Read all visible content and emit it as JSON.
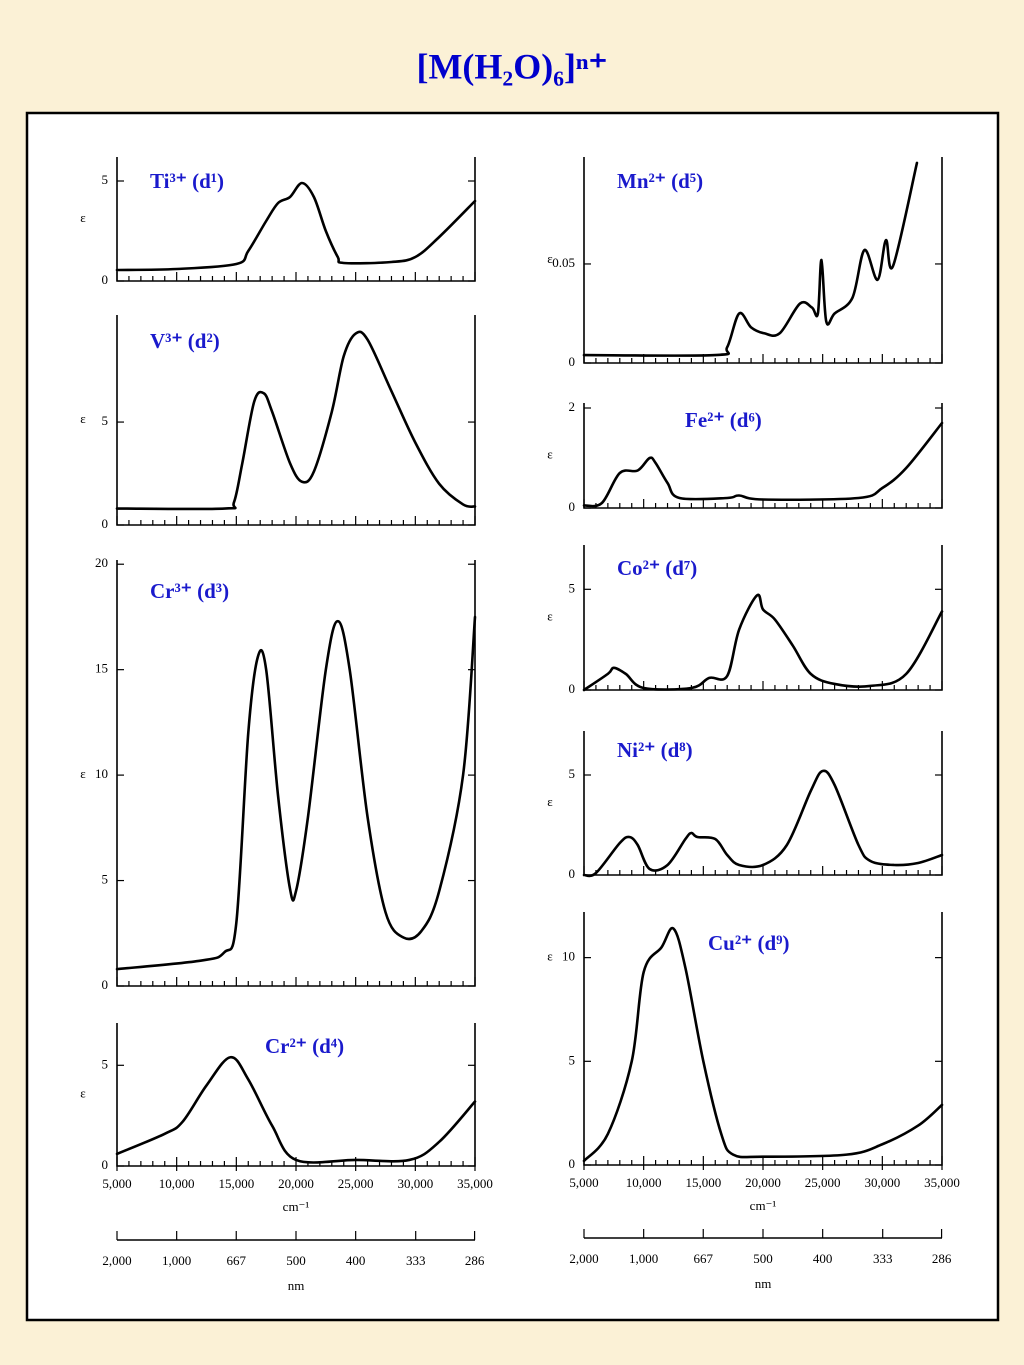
{
  "title": "[M(H₂O)₆]ⁿ⁺",
  "chart_data": [
    {
      "type": "line",
      "title": "Ti³⁺ (d¹)",
      "ylabel": "ε",
      "xlim": [
        5000,
        35000
      ],
      "ylim": [
        0,
        6.2
      ],
      "yticks": [
        0,
        5
      ],
      "color": "#000000",
      "x": [
        5000,
        10000,
        15000,
        16000,
        17500,
        18500,
        19500,
        20500,
        21500,
        22500,
        23500,
        24000,
        28000,
        30000,
        32000,
        35000
      ],
      "values": [
        0.55,
        0.6,
        0.85,
        1.5,
        3.0,
        3.9,
        4.2,
        4.9,
        4.2,
        2.5,
        1.2,
        0.9,
        0.95,
        1.2,
        2.2,
        4.0
      ]
    },
    {
      "type": "line",
      "title": "V³⁺ (d²)",
      "ylabel": "ε",
      "xlim": [
        5000,
        35000
      ],
      "ylim": [
        0,
        10.2
      ],
      "yticks": [
        0,
        5
      ],
      "color": "#000000",
      "x": [
        5000,
        14000,
        14800,
        15500,
        16500,
        17300,
        18000,
        19500,
        20500,
        21500,
        23000,
        24000,
        25000,
        26000,
        28000,
        30000,
        32000,
        34000,
        35000
      ],
      "values": [
        0.8,
        0.8,
        1.1,
        3,
        6.0,
        6.4,
        5.5,
        3.0,
        2.1,
        2.6,
        5.5,
        8.2,
        9.3,
        9.0,
        6.5,
        4.0,
        2.0,
        1.0,
        0.9
      ]
    },
    {
      "type": "line",
      "title": "Cr³⁺ (d³)",
      "ylabel": "ε",
      "xlim": [
        5000,
        35000
      ],
      "ylim": [
        0,
        20.2
      ],
      "yticks": [
        0,
        5,
        10,
        15,
        20
      ],
      "color": "#000000",
      "x": [
        5000,
        12000,
        14000,
        15000,
        16000,
        16800,
        17500,
        18500,
        19500,
        20000,
        21000,
        22500,
        23500,
        24500,
        26000,
        27500,
        29000,
        30500,
        32000,
        34000,
        35000
      ],
      "values": [
        0.8,
        1.2,
        1.6,
        3,
        12,
        15.6,
        15,
        9,
        4.6,
        4.5,
        8,
        15,
        17.3,
        15,
        8,
        3.5,
        2.3,
        2.6,
        4.5,
        10,
        17.5
      ]
    },
    {
      "type": "line",
      "title": "Cr²⁺ (d⁴)",
      "ylabel": "ε",
      "xlabel": "cm⁻¹",
      "xlim": [
        5000,
        35000
      ],
      "ylim": [
        0,
        7.1
      ],
      "yticks": [
        0,
        5
      ],
      "color": "#000000",
      "xticks": [
        {
          "value": 5000,
          "label": "5,000"
        },
        {
          "value": 10000,
          "label": "10,000"
        },
        {
          "value": 15000,
          "label": "15,000"
        },
        {
          "value": 20000,
          "label": "20,000"
        },
        {
          "value": 25000,
          "label": "25,000"
        },
        {
          "value": 30000,
          "label": "30,000"
        },
        {
          "value": 35000,
          "label": "35,000"
        }
      ],
      "nm_label": "nm",
      "nm_ticks": [
        {
          "value": 2000,
          "label": "2,000"
        },
        {
          "value": 1000,
          "label": "1,000"
        },
        667,
        500,
        400,
        333,
        286
      ],
      "x": [
        5000,
        9000,
        10500,
        12500,
        14500,
        16000,
        18000,
        20000,
        25000,
        29500,
        32000,
        35000
      ],
      "values": [
        0.6,
        1.6,
        2.2,
        4.0,
        5.4,
        4.3,
        2.0,
        0.3,
        0.3,
        0.3,
        1.2,
        3.2
      ]
    },
    {
      "type": "line",
      "title": "Mn²⁺ (d⁵)",
      "ylabel": "ε",
      "xlim": [
        5000,
        35000
      ],
      "ylim": [
        0,
        0.104
      ],
      "yticks": [
        0,
        0.05
      ],
      "color": "#000000",
      "x": [
        5000,
        16000,
        17000,
        18000,
        19000,
        20100,
        21400,
        23100,
        24100,
        24600,
        24900,
        25300,
        26000,
        27500,
        28500,
        29600,
        30300,
        30900,
        32900
      ],
      "values": [
        0.004,
        0.004,
        0.008,
        0.025,
        0.018,
        0.015,
        0.015,
        0.03,
        0.028,
        0.025,
        0.052,
        0.021,
        0.025,
        0.033,
        0.057,
        0.042,
        0.062,
        0.049,
        0.101
      ]
    },
    {
      "type": "line",
      "title": "Fe²⁺ (d⁶)",
      "ylabel": "ε",
      "xlim": [
        5000,
        35000
      ],
      "ylim": [
        0,
        2.1
      ],
      "yticks": [
        0,
        2
      ],
      "color": "#000000",
      "x": [
        5000,
        6500,
        8000,
        9500,
        10500,
        11000,
        12000,
        13000,
        17000,
        18000,
        20000,
        28000,
        30000,
        32000,
        35000
      ],
      "values": [
        0.05,
        0.1,
        0.7,
        0.75,
        1.0,
        0.9,
        0.5,
        0.2,
        0.2,
        0.25,
        0.17,
        0.2,
        0.4,
        0.8,
        1.7
      ]
    },
    {
      "type": "line",
      "title": "Co²⁺ (d⁷)",
      "ylabel": "ε",
      "xlim": [
        5000,
        35000
      ],
      "ylim": [
        0,
        7.2
      ],
      "yticks": [
        0,
        5
      ],
      "color": "#000000",
      "x": [
        5000,
        7000,
        7500,
        8500,
        10000,
        14000,
        15500,
        17000,
        18000,
        19500,
        20000,
        21000,
        22500,
        24000,
        26000,
        29000,
        32000,
        35000
      ],
      "values": [
        0,
        0.8,
        1.1,
        0.8,
        0.1,
        0.1,
        0.6,
        0.7,
        3,
        4.7,
        4.0,
        3.5,
        2.2,
        0.8,
        0.3,
        0.2,
        0.8,
        3.9
      ]
    },
    {
      "type": "line",
      "title": "Ni²⁺ (d⁸)",
      "ylabel": "ε",
      "xlim": [
        5000,
        35000
      ],
      "ylim": [
        0,
        7.2
      ],
      "yticks": [
        0,
        5
      ],
      "color": "#000000",
      "x": [
        5000,
        6000,
        8000,
        8800,
        9500,
        10500,
        12000,
        13500,
        14000,
        14500,
        16000,
        17000,
        18000,
        20000,
        22000,
        24000,
        25000,
        26000,
        28000,
        29000,
        31000,
        33000,
        35000
      ],
      "values": [
        0,
        0.1,
        1.6,
        1.9,
        1.5,
        0.3,
        0.5,
        1.8,
        2.1,
        1.9,
        1.8,
        1.0,
        0.5,
        0.5,
        1.5,
        4.2,
        5.2,
        4.5,
        1.5,
        0.7,
        0.5,
        0.6,
        1.0
      ]
    },
    {
      "type": "line",
      "title": "Cu²⁺ (d⁹)",
      "ylabel": "ε",
      "xlabel": "cm⁻¹",
      "xlim": [
        5000,
        35000
      ],
      "ylim": [
        0,
        12.2
      ],
      "yticks": [
        0,
        5,
        10
      ],
      "color": "#000000",
      "xticks": [
        {
          "value": 5000,
          "label": "5,000"
        },
        {
          "value": 10000,
          "label": "10,000"
        },
        {
          "value": 15000,
          "label": "15,000"
        },
        {
          "value": 20000,
          "label": "20,000"
        },
        {
          "value": 25000,
          "label": "25,000"
        },
        {
          "value": 30000,
          "label": "30,000"
        },
        {
          "value": 35000,
          "label": "35,000"
        }
      ],
      "nm_label": "nm",
      "nm_ticks": [
        {
          "value": 2000,
          "label": "2,000"
        },
        {
          "value": 1000,
          "label": "1,000"
        },
        667,
        500,
        400,
        333,
        286
      ],
      "x": [
        5000,
        7000,
        9000,
        10000,
        11500,
        12500,
        13500,
        15000,
        16500,
        17500,
        20000,
        27000,
        30000,
        33000,
        35000
      ],
      "values": [
        0.2,
        1.5,
        5,
        9.3,
        10.5,
        11.4,
        9.5,
        5,
        1.5,
        0.5,
        0.4,
        0.5,
        1,
        1.9,
        2.9
      ]
    }
  ]
}
